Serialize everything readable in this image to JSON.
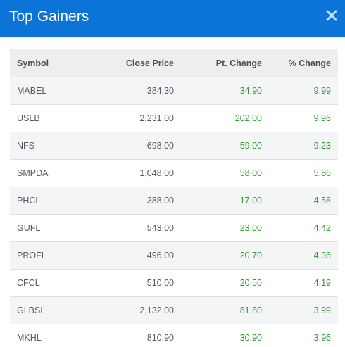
{
  "header": {
    "title": "Top Gainers",
    "close_icon": "close-icon"
  },
  "colors": {
    "header_bg": "#0b74d6",
    "positive": "#2e9a2e"
  },
  "table": {
    "columns": [
      "Symbol",
      "Close Price",
      "Pt. Change",
      "% Change"
    ],
    "rows": [
      {
        "symbol": "MABEL",
        "close": "384.30",
        "pt": "34.90",
        "pct": "9.99"
      },
      {
        "symbol": "USLB",
        "close": "2,231.00",
        "pt": "202.00",
        "pct": "9.96"
      },
      {
        "symbol": "NFS",
        "close": "698.00",
        "pt": "59.00",
        "pct": "9.23"
      },
      {
        "symbol": "SMPDA",
        "close": "1,048.00",
        "pt": "58.00",
        "pct": "5.86"
      },
      {
        "symbol": "PHCL",
        "close": "388.00",
        "pt": "17.00",
        "pct": "4.58"
      },
      {
        "symbol": "GUFL",
        "close": "543.00",
        "pt": "23.00",
        "pct": "4.42"
      },
      {
        "symbol": "PROFL",
        "close": "496.00",
        "pt": "20.70",
        "pct": "4.36"
      },
      {
        "symbol": "CFCL",
        "close": "510.00",
        "pt": "20.50",
        "pct": "4.19"
      },
      {
        "symbol": "GLBSL",
        "close": "2,132.00",
        "pt": "81.80",
        "pct": "3.99"
      },
      {
        "symbol": "MKHL",
        "close": "810.90",
        "pt": "30.90",
        "pct": "3.96"
      }
    ]
  }
}
